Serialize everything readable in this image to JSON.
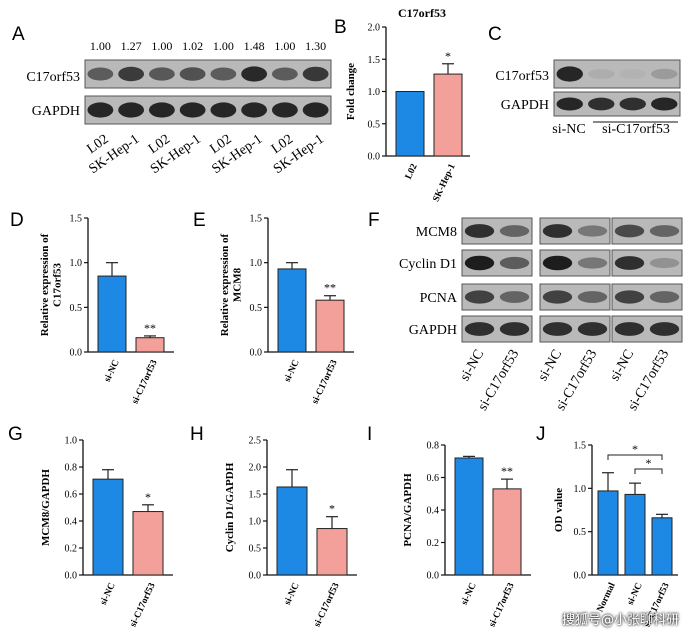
{
  "panels": {
    "A": {
      "letter": "A",
      "ratios": [
        "1.00",
        "1.27",
        "1.00",
        "1.02",
        "1.00",
        "1.48",
        "1.00",
        "1.30"
      ],
      "rows": [
        "C17orf53",
        "GAPDH"
      ],
      "lanes": [
        "L02",
        "SK-Hep-1",
        "L02",
        "SK-Hep-1",
        "L02",
        "SK-Hep-1",
        "L02",
        "SK-Hep-1"
      ],
      "band_intensity": [
        0.6,
        0.78,
        0.62,
        0.66,
        0.6,
        0.88,
        0.6,
        0.8
      ]
    },
    "B": {
      "letter": "B",
      "chart_data": {
        "type": "bar",
        "title": "C17orf53",
        "ylabel": "Fold change",
        "categories": [
          "L02",
          "SK-Hep-1"
        ],
        "values": [
          1.0,
          1.27
        ],
        "errors": [
          0,
          0.16
        ],
        "colors": [
          "#1e88e5",
          "#f4a09a"
        ],
        "sig": [
          "",
          "*"
        ],
        "ylim": [
          0,
          2.0
        ],
        "yticks": [
          "0.0",
          "0.5",
          "1.0",
          "1.5",
          "2.0"
        ]
      }
    },
    "C": {
      "letter": "C",
      "rows": [
        "C17orf53",
        "GAPDH"
      ],
      "lane_labels": [
        "si-NC",
        "si-C17orf53"
      ],
      "band_intensity": [
        0.9,
        0.15,
        0.12,
        0.25
      ]
    },
    "D": {
      "letter": "D",
      "chart_data": {
        "type": "bar",
        "ylabel": "Relative expression of C17orf53",
        "categories": [
          "si-NC",
          "si-C17orf53"
        ],
        "values": [
          0.85,
          0.16
        ],
        "errors": [
          0.15,
          0.02
        ],
        "colors": [
          "#1e88e5",
          "#f4a09a"
        ],
        "sig": [
          "",
          "**"
        ],
        "ylim": [
          0,
          1.5
        ],
        "yticks": [
          "0.0",
          "0.5",
          "1.0",
          "1.5"
        ]
      }
    },
    "E": {
      "letter": "E",
      "chart_data": {
        "type": "bar",
        "ylabel": "Relative expression of MCM8",
        "categories": [
          "si-NC",
          "si-C17orf53"
        ],
        "values": [
          0.93,
          0.58
        ],
        "errors": [
          0.07,
          0.05
        ],
        "colors": [
          "#1e88e5",
          "#f4a09a"
        ],
        "sig": [
          "",
          "**"
        ],
        "ylim": [
          0,
          1.5
        ],
        "yticks": [
          "0.0",
          "0.5",
          "1.0",
          "1.5"
        ]
      }
    },
    "F": {
      "letter": "F",
      "rows": [
        "MCM8",
        "Cyclin D1",
        "PCNA",
        "GAPDH"
      ],
      "lane_labels": [
        "si-NC",
        "si-C17orf53",
        "si-NC",
        "si-C17orf53",
        "si-NC",
        "si-C17orf53"
      ],
      "band_intensity": [
        [
          0.85,
          0.55,
          0.85,
          0.45,
          0.7,
          0.55
        ],
        [
          0.95,
          0.6,
          0.95,
          0.45,
          0.85,
          0.3
        ],
        [
          0.75,
          0.55,
          0.75,
          0.55,
          0.75,
          0.55
        ],
        [
          0.85,
          0.85,
          0.85,
          0.85,
          0.85,
          0.85
        ]
      ]
    },
    "G": {
      "letter": "G",
      "chart_data": {
        "type": "bar",
        "ylabel": "MCM8/GAPDH",
        "categories": [
          "si-NC",
          "si-C17orf53"
        ],
        "values": [
          0.71,
          0.47
        ],
        "errors": [
          0.07,
          0.05
        ],
        "colors": [
          "#1e88e5",
          "#f4a09a"
        ],
        "sig": [
          "",
          "*"
        ],
        "ylim": [
          0,
          1.0
        ],
        "yticks": [
          "0.0",
          "0.2",
          "0.4",
          "0.6",
          "0.8",
          "1.0"
        ]
      }
    },
    "H": {
      "letter": "H",
      "chart_data": {
        "type": "bar",
        "ylabel": "Cyclin D1/GAPDH",
        "categories": [
          "si-NC",
          "si-C17orf53"
        ],
        "values": [
          1.63,
          0.86
        ],
        "errors": [
          0.32,
          0.22
        ],
        "colors": [
          "#1e88e5",
          "#f4a09a"
        ],
        "sig": [
          "",
          "*"
        ],
        "ylim": [
          0,
          2.5
        ],
        "yticks": [
          "0.0",
          "0.5",
          "1.0",
          "1.5",
          "2.0",
          "2.5"
        ]
      }
    },
    "I": {
      "letter": "I",
      "chart_data": {
        "type": "bar",
        "ylabel": "PCNA/GAPDH",
        "categories": [
          "si-NC",
          "si-C17orf53"
        ],
        "values": [
          0.72,
          0.53
        ],
        "errors": [
          0.01,
          0.06
        ],
        "colors": [
          "#1e88e5",
          "#f4a09a"
        ],
        "sig": [
          "",
          "**"
        ],
        "ylim": [
          0,
          0.8
        ],
        "yticks": [
          "0.0",
          "0.2",
          "0.4",
          "0.6",
          "0.8"
        ]
      }
    },
    "J": {
      "letter": "J",
      "chart_data": {
        "type": "bar",
        "ylabel": "OD value",
        "categories": [
          "Normal",
          "si-NC",
          "si-C17orf53"
        ],
        "values": [
          0.97,
          0.93,
          0.66
        ],
        "errors": [
          0.21,
          0.13,
          0.04
        ],
        "colors": [
          "#1e88e5",
          "#1e88e5",
          "#1e88e5"
        ],
        "sig_brackets": [
          "*",
          "*"
        ],
        "ylim": [
          0,
          1.5
        ],
        "yticks": [
          "0.0",
          "0.5",
          "1.0",
          "1.5"
        ]
      }
    }
  },
  "watermark": "搜狐号@小张聊科研"
}
